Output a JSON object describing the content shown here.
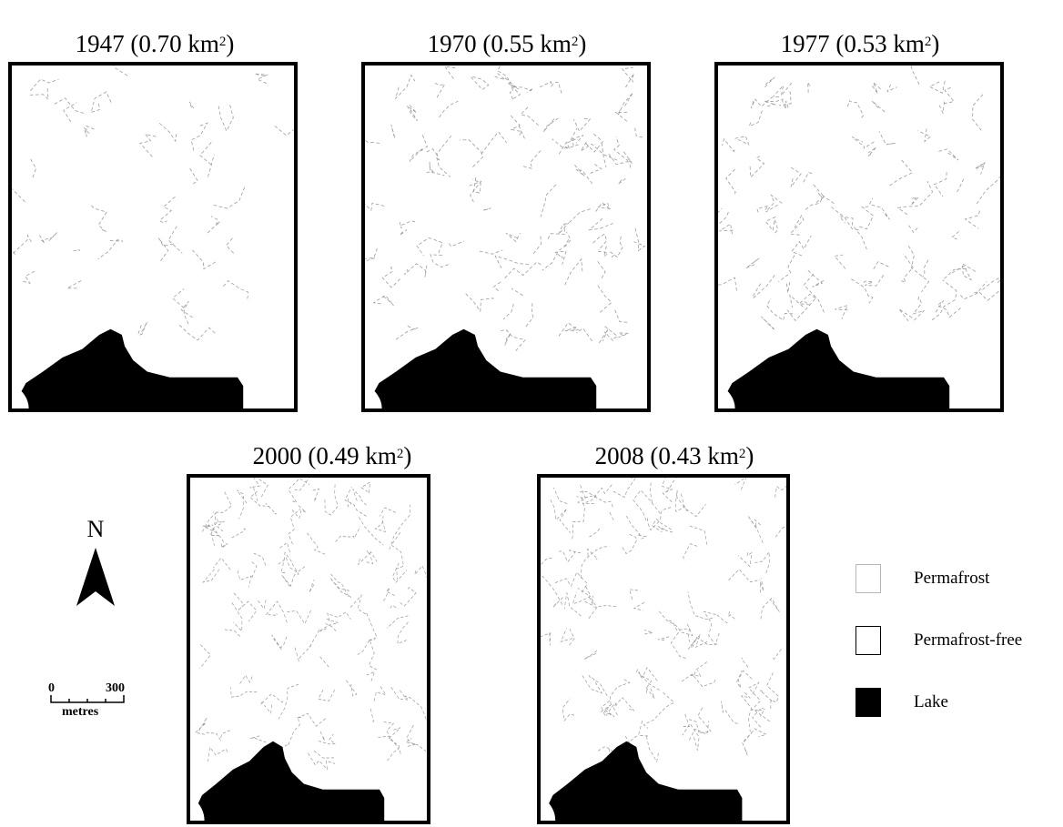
{
  "panels": [
    {
      "id": "p1947",
      "year": "1947",
      "area_prefix": "(0.70 km",
      "area_suffix": ")",
      "superscript": "2",
      "permafrost_area_km2": 0.7
    },
    {
      "id": "p1970",
      "year": "1970",
      "area_prefix": "(0.55 km",
      "area_suffix": ")",
      "superscript": "2",
      "permafrost_area_km2": 0.55
    },
    {
      "id": "p1977",
      "year": "1977",
      "area_prefix": "(0.53 km",
      "area_suffix": ")",
      "superscript": "2",
      "permafrost_area_km2": 0.53
    },
    {
      "id": "p2000",
      "year": "2000",
      "area_prefix": "(0.49 km",
      "area_suffix": ")",
      "superscript": "2",
      "permafrost_area_km2": 0.49
    },
    {
      "id": "p2008",
      "year": "2008",
      "area_prefix": "(0.43 km",
      "area_suffix": ")",
      "superscript": "2",
      "permafrost_area_km2": 0.43
    }
  ],
  "north_arrow": {
    "label": "N"
  },
  "scale_bar": {
    "start": "0",
    "end": "300",
    "unit": "metres"
  },
  "legend": [
    {
      "label": "Permafrost",
      "fill": "#ffffff",
      "stroke": "#b8b8b8"
    },
    {
      "label": "Permafrost-free",
      "fill": "#ffffff",
      "stroke": "#000000"
    },
    {
      "label": "Lake",
      "fill": "#000000",
      "stroke": "#000000"
    }
  ],
  "colors": {
    "frame": "#000000",
    "lake": "#000000",
    "boundary": "#9a9a9a"
  }
}
